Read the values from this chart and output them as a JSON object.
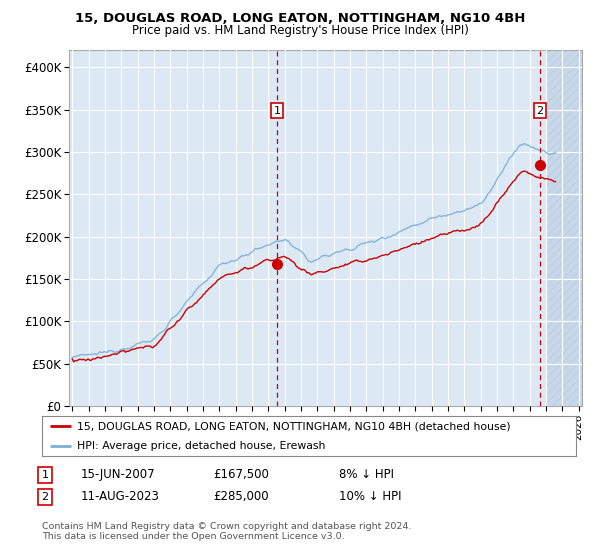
{
  "title": "15, DOUGLAS ROAD, LONG EATON, NOTTINGHAM, NG10 4BH",
  "subtitle": "Price paid vs. HM Land Registry's House Price Index (HPI)",
  "legend_line1": "15, DOUGLAS ROAD, LONG EATON, NOTTINGHAM, NG10 4BH (detached house)",
  "legend_line2": "HPI: Average price, detached house, Erewash",
  "footnote": "Contains HM Land Registry data © Crown copyright and database right 2024.\nThis data is licensed under the Open Government Licence v3.0.",
  "annotation1_date": "15-JUN-2007",
  "annotation1_price": "£167,500",
  "annotation1_hpi": "8% ↓ HPI",
  "annotation2_date": "11-AUG-2023",
  "annotation2_price": "£285,000",
  "annotation2_hpi": "10% ↓ HPI",
  "ylim": [
    0,
    420000
  ],
  "yticks": [
    0,
    50000,
    100000,
    150000,
    200000,
    250000,
    300000,
    350000,
    400000
  ],
  "ytick_labels": [
    "£0",
    "£50K",
    "£100K",
    "£150K",
    "£200K",
    "£250K",
    "£300K",
    "£350K",
    "£400K"
  ],
  "background_color": "#dce9f5",
  "hatch_color": "#c8d8eb",
  "grid_color": "#ffffff",
  "line_color_red": "#cc0000",
  "line_color_blue": "#7bafd4",
  "vline_color": "#cc0000",
  "sale1_x": 2007.54,
  "sale1_y": 167500,
  "sale2_x": 2023.62,
  "sale2_y": 285000,
  "xmin": 1995.0,
  "xmax": 2026.0,
  "hatch_start": 2024.0
}
